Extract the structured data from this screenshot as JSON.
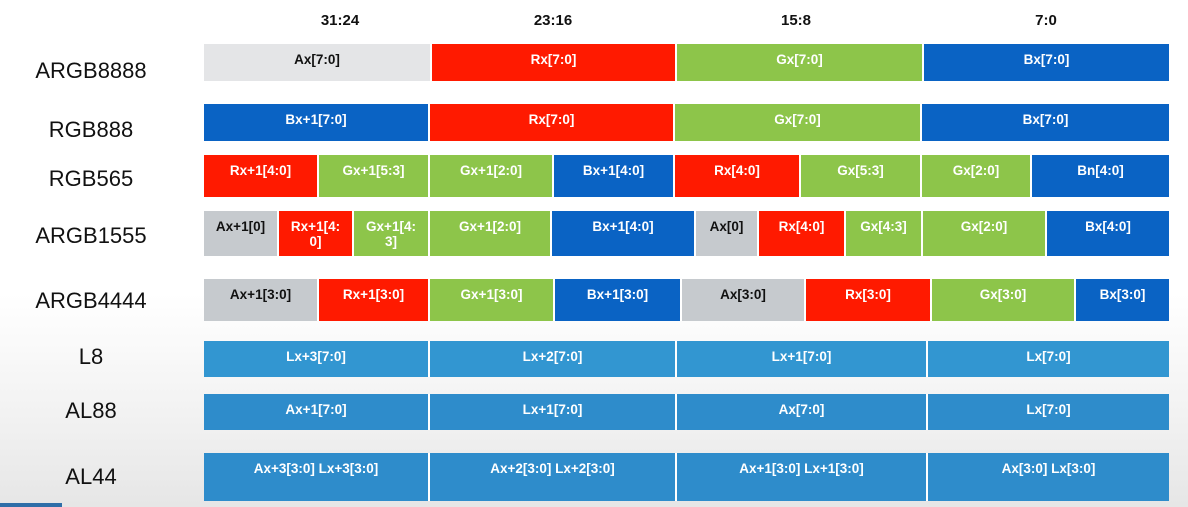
{
  "columns": [
    "31:24",
    "23:16",
    "15:8",
    "7:0"
  ],
  "colors": {
    "alpha": "#e4e5e7",
    "alpha_gray": "#c6cace",
    "red": "#ff1a00",
    "green": "#8dc54a",
    "blue": "#0a63c4",
    "luma": "#3296d1",
    "luma_alpha": "#2e8ccb"
  },
  "rows": [
    {
      "label": "ARGB8888",
      "fields": [
        {
          "text": "Ax[7:0]",
          "color": "alpha"
        },
        {
          "text": "Rx[7:0]",
          "color": "red"
        },
        {
          "text": "Gx[7:0]",
          "color": "green"
        },
        {
          "text": "Bx[7:0]",
          "color": "blue"
        }
      ]
    },
    {
      "label": "RGB888",
      "fields": [
        {
          "text": "Bx+1[7:0]",
          "color": "blue"
        },
        {
          "text": "Rx[7:0]",
          "color": "red"
        },
        {
          "text": "Gx[7:0]",
          "color": "green"
        },
        {
          "text": "Bx[7:0]",
          "color": "blue"
        }
      ]
    },
    {
      "label": "RGB565",
      "fields": [
        {
          "text": "Rx+1[4:0]",
          "color": "red"
        },
        {
          "text": "Gx+1[5:3]",
          "color": "green"
        },
        {
          "text": "Gx+1[2:0]",
          "color": "green"
        },
        {
          "text": "Bx+1[4:0]",
          "color": "blue"
        },
        {
          "text": "Rx[4:0]",
          "color": "red"
        },
        {
          "text": "Gx[5:3]",
          "color": "green"
        },
        {
          "text": "Gx[2:0]",
          "color": "green"
        },
        {
          "text": "Bn[4:0]",
          "color": "blue"
        }
      ]
    },
    {
      "label": "ARGB1555",
      "fields": [
        {
          "text": "Ax+1[0]",
          "color": "alpha_gray"
        },
        {
          "text": "Rx+1[4:\n0]",
          "color": "red"
        },
        {
          "text": "Gx+1[4:\n3]",
          "color": "green"
        },
        {
          "text": "Gx+1[2:0]",
          "color": "green"
        },
        {
          "text": "Bx+1[4:0]",
          "color": "blue"
        },
        {
          "text": "Ax[0]",
          "color": "alpha_gray"
        },
        {
          "text": "Rx[4:0]",
          "color": "red"
        },
        {
          "text": "Gx[4:3]",
          "color": "green"
        },
        {
          "text": "Gx[2:0]",
          "color": "green"
        },
        {
          "text": "Bx[4:0]",
          "color": "blue"
        }
      ]
    },
    {
      "label": "ARGB4444",
      "fields": [
        {
          "text": "Ax+1[3:0]",
          "color": "alpha_gray"
        },
        {
          "text": "Rx+1[3:0]",
          "color": "red"
        },
        {
          "text": "Gx+1[3:0]",
          "color": "green"
        },
        {
          "text": "Bx+1[3:0]",
          "color": "blue"
        },
        {
          "text": "Ax[3:0]",
          "color": "alpha_gray"
        },
        {
          "text": "Rx[3:0]",
          "color": "red"
        },
        {
          "text": "Gx[3:0]",
          "color": "green"
        },
        {
          "text": "Bx[3:0]",
          "color": "blue"
        }
      ]
    },
    {
      "label": "L8",
      "fields": [
        {
          "text": "Lx+3[7:0]",
          "color": "luma"
        },
        {
          "text": "Lx+2[7:0]",
          "color": "luma"
        },
        {
          "text": "Lx+1[7:0]",
          "color": "luma"
        },
        {
          "text": "Lx[7:0]",
          "color": "luma"
        }
      ]
    },
    {
      "label": "AL88",
      "fields": [
        {
          "text": "Ax+1[7:0]",
          "color": "luma_alpha"
        },
        {
          "text": "Lx+1[7:0]",
          "color": "luma_alpha"
        },
        {
          "text": "Ax[7:0]",
          "color": "luma_alpha"
        },
        {
          "text": "Lx[7:0]",
          "color": "luma_alpha"
        }
      ]
    },
    {
      "label": "AL44",
      "fields": [
        {
          "text": "Ax+3[3:0] Lx+3[3:0]",
          "color": "luma_alpha"
        },
        {
          "text": "Ax+2[3:0] Lx+2[3:0]",
          "color": "luma_alpha"
        },
        {
          "text": "Ax+1[3:0] Lx+1[3:0]",
          "color": "luma_alpha"
        },
        {
          "text": "Ax[3:0] Lx[3:0]",
          "color": "luma_alpha"
        }
      ]
    }
  ]
}
